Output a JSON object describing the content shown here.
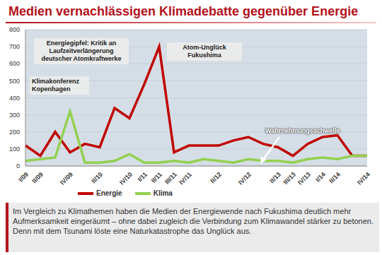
{
  "chart_data": {
    "type": "line",
    "title": "Medien vernachlässigen Klimadebatte gegenüber Energie",
    "categories": [
      "I/09",
      "II/09",
      null,
      "IV/09",
      null,
      "II/10",
      null,
      "IV/10",
      "I/11",
      "II/11",
      "III/11",
      "IV/11",
      null,
      "II/12",
      null,
      "IV/12",
      null,
      "II/13",
      "III/13",
      "IV/13",
      "I/14",
      "II/14",
      null,
      "IV/14"
    ],
    "series": [
      {
        "name": "Energie",
        "color": "#c00000",
        "values": [
          120,
          60,
          200,
          80,
          130,
          110,
          340,
          280,
          480,
          700,
          80,
          120,
          120,
          120,
          150,
          170,
          130,
          110,
          60,
          130,
          170,
          180,
          60,
          60
        ]
      },
      {
        "name": "Klima",
        "color": "#92d050",
        "values": [
          30,
          40,
          50,
          320,
          20,
          20,
          30,
          70,
          20,
          20,
          30,
          20,
          40,
          30,
          20,
          40,
          30,
          30,
          20,
          40,
          50,
          40,
          60,
          60
        ]
      }
    ],
    "ylim": [
      0,
      800
    ],
    "yticks": [
      0,
      100,
      200,
      300,
      400,
      500,
      600,
      700,
      800
    ],
    "grid": true,
    "legend": "bottom",
    "annotations": [
      "Klimakonferenz Kopenhagen",
      "Energiegipfel: Kritik an Laufzeitverlängerung deutscher Atomkraftwerke",
      "Atom-Unglück Fukushima",
      "Wahrnehmungsschwelle"
    ],
    "caption": "Im Vergleich zu Klimathemen haben die Medien der Energiewende nach Fukushima deutlich mehr Aufmerksamkeit eingeräumt – ohne dabei zugleich die Verbindung zum Klimawandel stärker zu betonen. Denn mit dem Tsunami löste eine Naturkatastrophe das Unglück aus."
  }
}
